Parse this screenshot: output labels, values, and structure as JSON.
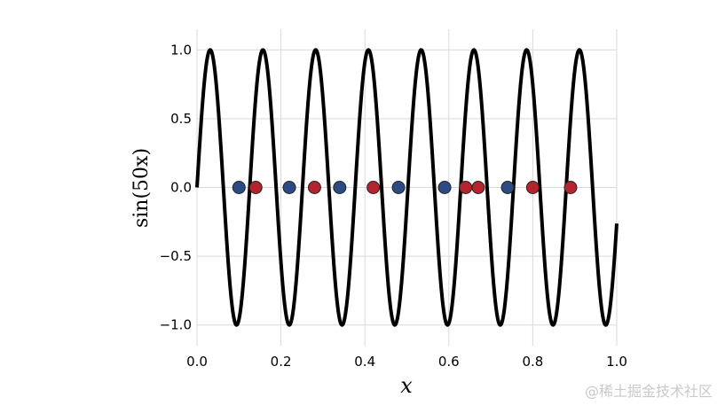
{
  "chart_data": {
    "type": "line",
    "title": "",
    "xlabel": "x",
    "ylabel": "sin(50x)",
    "xlim": [
      0.0,
      1.0
    ],
    "ylim": [
      -1.15,
      1.15
    ],
    "xticks": [
      0.0,
      0.2,
      0.4,
      0.6,
      0.8,
      1.0
    ],
    "xtick_labels": [
      "0.0",
      "0.2",
      "0.4",
      "0.6",
      "0.8",
      "1.0"
    ],
    "yticks": [
      -1.0,
      -0.5,
      0.0,
      0.5,
      1.0
    ],
    "ytick_labels": [
      "−1.0",
      "−0.5",
      "0.0",
      "0.5",
      "1.0"
    ],
    "grid": true,
    "series": [
      {
        "function": "sin(50x)",
        "color": "#000000"
      },
      {
        "type": "scatter",
        "color": "#2c4b84",
        "x": [
          0.1,
          0.22,
          0.34,
          0.48,
          0.59,
          0.74
        ],
        "y": [
          0,
          0,
          0,
          0,
          0,
          0
        ]
      },
      {
        "type": "scatter",
        "color": "#b3242e",
        "x": [
          0.14,
          0.28,
          0.42,
          0.64,
          0.67,
          0.8,
          0.89
        ],
        "y": [
          0,
          0,
          0,
          0,
          0,
          0,
          0
        ]
      }
    ]
  },
  "watermark": "@稀土掘金技术社区"
}
